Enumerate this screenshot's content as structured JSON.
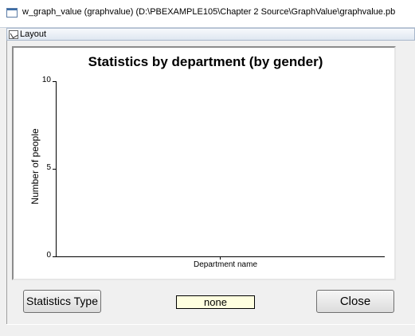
{
  "window": {
    "title": "w_graph_value (graphvalue) (D:\\PBEXAMPLE105\\Chapter 2 Source\\GraphValue\\graphvalue.pb",
    "layout_tab": "Layout"
  },
  "chart_data": {
    "type": "bar",
    "title": "Statistics by department (by gender)",
    "xlabel": "Department name",
    "ylabel": "Number of people",
    "ylim": [
      0,
      10
    ],
    "yticks": [
      "10",
      "5",
      "0"
    ],
    "categories": [],
    "series": []
  },
  "controls": {
    "stats_type_label": "Statistics Type",
    "value_text": "none",
    "close_label": "Close"
  },
  "colors": {
    "value_box_bg": "#ffffe0",
    "graph_bg": "#ffffff"
  }
}
